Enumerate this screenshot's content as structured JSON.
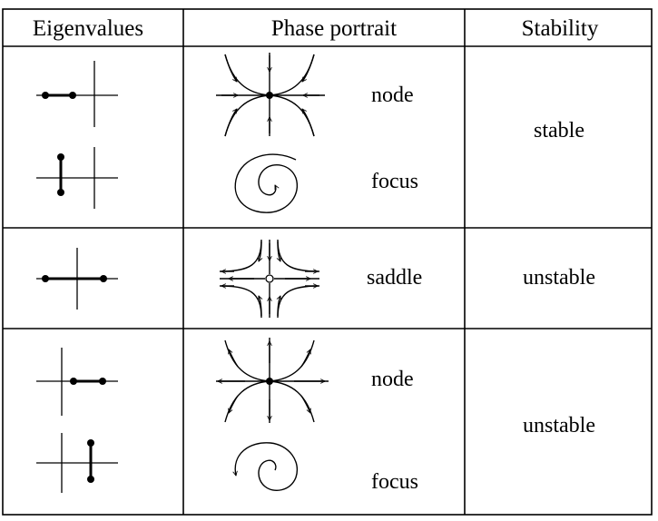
{
  "headers": {
    "eigenvalues": "Eigenvalues",
    "phase_portrait": "Phase portrait",
    "stability": "Stability"
  },
  "rows": [
    {
      "stability": "stable",
      "cases": [
        {
          "type": "node",
          "eigen_icon": "two-negative-real-eigenvalues-icon",
          "portrait_icon": "stable-node-icon"
        },
        {
          "type": "focus",
          "eigen_icon": "complex-negative-real-part-icon",
          "portrait_icon": "stable-focus-spiral-icon"
        }
      ]
    },
    {
      "stability": "unstable",
      "cases": [
        {
          "type": "saddle",
          "eigen_icon": "opposite-sign-real-eigenvalues-icon",
          "portrait_icon": "saddle-icon"
        }
      ]
    },
    {
      "stability": "unstable",
      "cases": [
        {
          "type": "node",
          "eigen_icon": "two-positive-real-eigenvalues-icon",
          "portrait_icon": "unstable-node-icon"
        },
        {
          "type": "focus",
          "eigen_icon": "complex-positive-real-part-icon",
          "portrait_icon": "unstable-focus-spiral-icon"
        }
      ]
    }
  ]
}
